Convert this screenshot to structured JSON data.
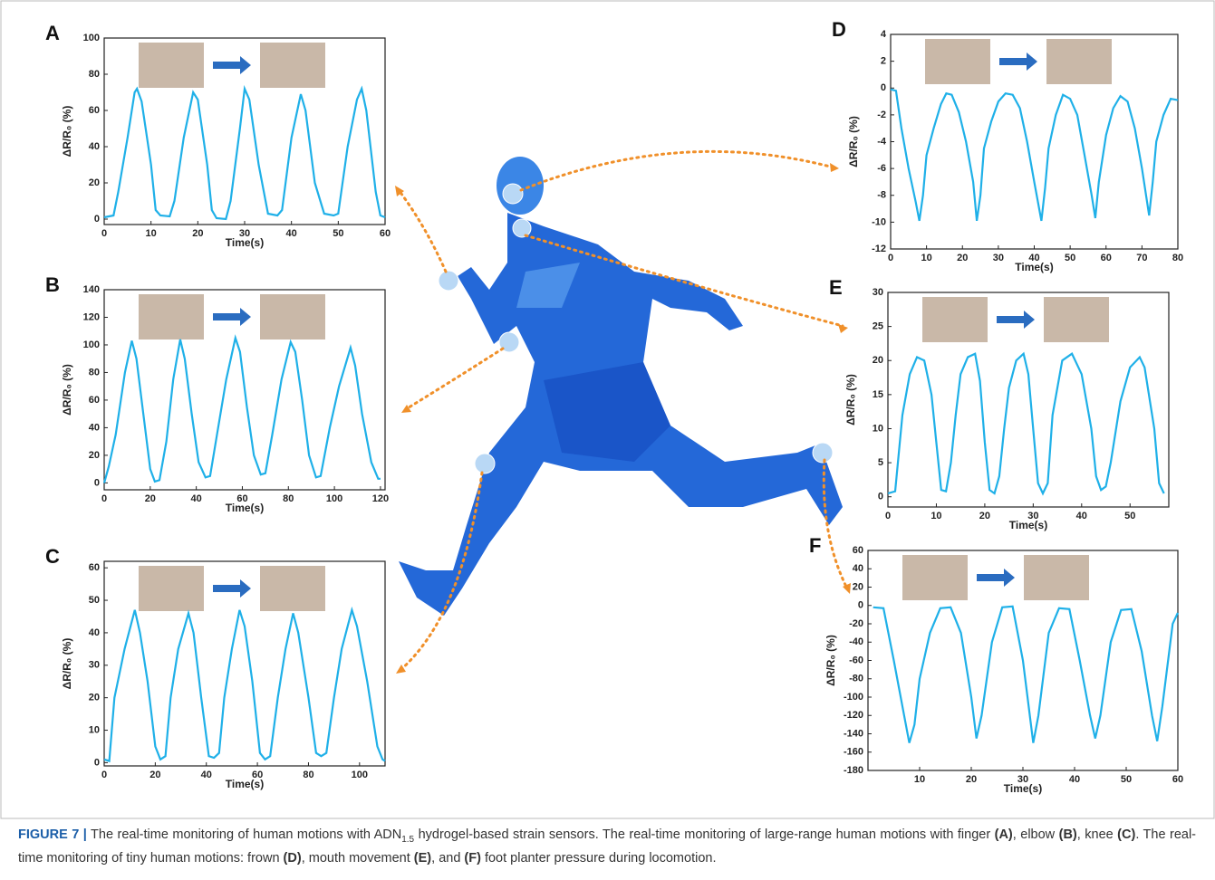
{
  "chart_data": [
    {
      "type": "line",
      "panel": "A",
      "x_label": "Time(s)",
      "y_label": "ΔR/R₀ (%)",
      "color": "#1fb0e8",
      "xlim": [
        0,
        60
      ],
      "ylim": [
        -3,
        100
      ],
      "xticks": [
        0,
        10,
        20,
        30,
        40,
        50,
        60
      ],
      "yticks": [
        0,
        20,
        40,
        60,
        80,
        100
      ],
      "x": [
        0,
        2,
        3,
        5,
        6.5,
        7,
        8,
        10,
        11,
        12,
        14,
        15,
        17,
        19,
        20,
        22,
        23,
        24,
        26,
        27,
        29,
        30,
        31,
        33,
        35,
        37,
        38,
        40,
        42,
        43,
        45,
        47,
        49,
        50,
        52,
        54,
        55,
        56,
        58,
        59,
        60
      ],
      "values": [
        1,
        2,
        15,
        45,
        70,
        72,
        65,
        30,
        5,
        2,
        1.5,
        10,
        45,
        70,
        66,
        30,
        5,
        0.5,
        0,
        10,
        50,
        72,
        66,
        30,
        3,
        2,
        5,
        45,
        69,
        60,
        20,
        3,
        2,
        3,
        40,
        66,
        72,
        60,
        15,
        2,
        1
      ]
    },
    {
      "type": "line",
      "panel": "B",
      "x_label": "Time(s)",
      "y_label": "ΔR/R₀ (%)",
      "color": "#1fb0e8",
      "xlim": [
        0,
        122
      ],
      "ylim": [
        -5,
        140
      ],
      "xticks": [
        0,
        20,
        40,
        60,
        80,
        100,
        120
      ],
      "yticks": [
        0,
        20,
        40,
        60,
        80,
        100,
        120,
        140
      ],
      "x": [
        0,
        2,
        5,
        9,
        12,
        14,
        17,
        20,
        22,
        24,
        27,
        30,
        33,
        35,
        38,
        41,
        44,
        46,
        49,
        53,
        57,
        59,
        62,
        65,
        68,
        70,
        73,
        77,
        81,
        83,
        86,
        89,
        92,
        94,
        98,
        102,
        107,
        109,
        112,
        116,
        119,
        120
      ],
      "values": [
        0,
        12,
        35,
        80,
        103,
        90,
        50,
        10,
        1,
        2,
        30,
        75,
        104,
        90,
        50,
        15,
        4,
        5,
        35,
        75,
        105,
        95,
        55,
        20,
        6,
        7,
        35,
        75,
        102,
        95,
        60,
        20,
        4,
        5,
        40,
        70,
        98,
        85,
        50,
        15,
        3,
        3
      ]
    },
    {
      "type": "line",
      "panel": "C",
      "x_label": "Time(s)",
      "y_label": "ΔR/R₀ (%)",
      "color": "#1fb0e8",
      "xlim": [
        0,
        110
      ],
      "ylim": [
        -1,
        62
      ],
      "xticks": [
        0,
        20,
        40,
        60,
        80,
        100
      ],
      "yticks": [
        0,
        10,
        20,
        30,
        40,
        50,
        60
      ],
      "x": [
        0,
        2,
        4,
        8,
        12,
        14,
        17,
        20,
        22,
        24,
        26,
        29,
        33,
        35,
        38,
        41,
        43,
        45,
        47,
        50,
        53,
        55,
        58,
        61,
        63,
        65,
        68,
        71,
        74,
        76,
        80,
        83,
        85,
        87,
        90,
        93,
        97,
        99,
        103,
        107,
        109,
        110
      ],
      "values": [
        1,
        0.5,
        20,
        35,
        47,
        40,
        25,
        5,
        1,
        2,
        20,
        35,
        46,
        40,
        20,
        2,
        1.5,
        3,
        20,
        35,
        47,
        42,
        25,
        3,
        1,
        2,
        20,
        35,
        46,
        40,
        20,
        3,
        2,
        3,
        20,
        35,
        47,
        42,
        25,
        5,
        1,
        0.5
      ]
    },
    {
      "type": "line",
      "panel": "D",
      "x_label": "Time(s)",
      "y_label": "ΔR/R₀ (%)",
      "color": "#1fb0e8",
      "xlim": [
        0,
        80
      ],
      "ylim": [
        -12,
        4
      ],
      "xticks": [
        0,
        10,
        20,
        30,
        40,
        50,
        60,
        70,
        80
      ],
      "yticks": [
        -12,
        -10,
        -8,
        -6,
        -4,
        -2,
        0,
        2,
        4
      ],
      "x": [
        0,
        1.5,
        3,
        5,
        7,
        8,
        9,
        10,
        12,
        14,
        15.5,
        17,
        19,
        21,
        23,
        24,
        25,
        26,
        28,
        30,
        32,
        34,
        36,
        38,
        40,
        42,
        43,
        44,
        46,
        48,
        50,
        52,
        54,
        56,
        57,
        58,
        60,
        62,
        64,
        66,
        68,
        70,
        72,
        73,
        74,
        76,
        78,
        80
      ],
      "values": [
        -0.1,
        -0.2,
        -3,
        -6,
        -8.5,
        -9.9,
        -8,
        -5,
        -3,
        -1.2,
        -0.4,
        -0.5,
        -1.8,
        -4,
        -7,
        -9.9,
        -8,
        -4.5,
        -2.5,
        -1,
        -0.4,
        -0.5,
        -1.5,
        -4,
        -7,
        -9.9,
        -7.5,
        -4.5,
        -2,
        -0.5,
        -0.8,
        -2,
        -5,
        -8,
        -9.7,
        -7,
        -3.5,
        -1.5,
        -0.6,
        -1,
        -3,
        -6,
        -9.5,
        -7,
        -4,
        -2,
        -0.8,
        -0.9
      ]
    },
    {
      "type": "line",
      "panel": "E",
      "x_label": "Time(s)",
      "y_label": "ΔR/R₀ (%)",
      "color": "#1fb0e8",
      "xlim": [
        0,
        58
      ],
      "ylim": [
        -1.5,
        30
      ],
      "xticks": [
        0,
        10,
        20,
        30,
        40,
        50
      ],
      "yticks": [
        0,
        5,
        10,
        15,
        20,
        25,
        30
      ],
      "x": [
        0,
        1.5,
        3,
        4.5,
        6,
        7.5,
        9,
        10,
        11,
        12,
        13,
        14,
        15,
        16.5,
        18,
        19,
        20,
        21,
        22,
        23,
        24,
        25,
        26.5,
        28,
        29,
        30,
        31,
        32,
        33,
        34,
        36,
        38,
        40,
        42,
        43,
        44,
        45,
        46,
        48,
        50,
        52,
        53,
        55,
        56,
        57
      ],
      "values": [
        0.5,
        0.8,
        12,
        18,
        20.5,
        20,
        15,
        8,
        1,
        0.8,
        5,
        12,
        18,
        20.5,
        21,
        17,
        8,
        1,
        0.5,
        3,
        10,
        16,
        20,
        21,
        18,
        10,
        2,
        0.5,
        2,
        12,
        20,
        21,
        18,
        10,
        3,
        1,
        1.5,
        5,
        14,
        19,
        20.5,
        19,
        10,
        2,
        0.5
      ]
    },
    {
      "type": "line",
      "panel": "F",
      "x_label": "Time(s)",
      "y_label": "ΔR/R₀ (%)",
      "color": "#1fb0e8",
      "xlim": [
        0,
        60
      ],
      "ylim": [
        -180,
        60
      ],
      "xticks": [
        10,
        20,
        30,
        40,
        50,
        60
      ],
      "yticks": [
        -180,
        -160,
        -140,
        -120,
        -100,
        -80,
        -60,
        -40,
        -20,
        0,
        20,
        40,
        60
      ],
      "x": [
        1,
        3,
        5,
        7,
        8,
        9,
        10,
        12,
        14,
        16,
        18,
        20,
        21,
        22,
        24,
        26,
        28,
        30,
        32,
        33,
        35,
        37,
        39,
        41,
        43,
        44,
        45,
        47,
        49,
        51,
        53,
        55,
        56,
        57,
        59,
        60
      ],
      "values": [
        -2,
        -3,
        -60,
        -120,
        -150,
        -130,
        -80,
        -30,
        -3,
        -2,
        -30,
        -100,
        -145,
        -120,
        -40,
        -2,
        -1,
        -60,
        -150,
        -120,
        -30,
        -3,
        -4,
        -60,
        -120,
        -145,
        -120,
        -40,
        -5,
        -4,
        -50,
        -120,
        -148,
        -110,
        -20,
        -8
      ]
    }
  ],
  "caption": {
    "label": "FIGURE 7 |",
    "parts": [
      {
        "text": " The real-time monitoring of human motions with ADN"
      },
      {
        "text": "1.5",
        "sub": true
      },
      {
        "text": " hydrogel-based strain sensors. The real-time monitoring of large-range human motions with finger "
      },
      {
        "text": "(A)",
        "bold": true
      },
      {
        "text": ", elbow "
      },
      {
        "text": "(B)",
        "bold": true
      },
      {
        "text": ", knee "
      },
      {
        "text": "(C)",
        "bold": true
      },
      {
        "text": ". The real-time monitoring of tiny human motions: frown "
      },
      {
        "text": "(D)",
        "bold": true
      },
      {
        "text": ", mouth movement "
      },
      {
        "text": "(E)",
        "bold": true
      },
      {
        "text": ", and "
      },
      {
        "text": "(F)",
        "bold": true
      },
      {
        "text": " foot planter pressure during locomotion."
      }
    ]
  }
}
